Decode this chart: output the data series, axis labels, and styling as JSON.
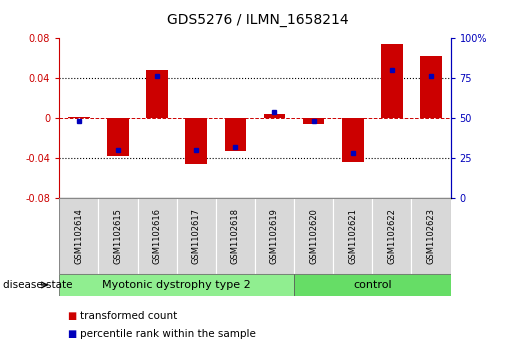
{
  "title": "GDS5276 / ILMN_1658214",
  "samples": [
    "GSM1102614",
    "GSM1102615",
    "GSM1102616",
    "GSM1102617",
    "GSM1102618",
    "GSM1102619",
    "GSM1102620",
    "GSM1102621",
    "GSM1102622",
    "GSM1102623"
  ],
  "red_values": [
    0.001,
    -0.038,
    0.048,
    -0.046,
    -0.033,
    0.004,
    -0.006,
    -0.044,
    0.074,
    0.062
  ],
  "blue_values": [
    48,
    30,
    76,
    30,
    32,
    54,
    48,
    28,
    80,
    76
  ],
  "ylim_left": [
    -0.08,
    0.08
  ],
  "ylim_right": [
    0,
    100
  ],
  "yticks_left": [
    -0.08,
    -0.04,
    0,
    0.04,
    0.08
  ],
  "yticks_right": [
    0,
    25,
    50,
    75,
    100
  ],
  "group_separator": 6,
  "bar_width": 0.55,
  "red_color": "#CC0000",
  "blue_color": "#0000BB",
  "axis_left_color": "#CC0000",
  "axis_right_color": "#0000BB",
  "background_color": "#ffffff",
  "label_bg_color": "#d8d8d8",
  "group1_color": "#90EE90",
  "group2_color": "#66DD66",
  "group1_label": "Myotonic dystrophy type 2",
  "group2_label": "control",
  "disease_state_label": "disease state",
  "legend_label1": "transformed count",
  "legend_label2": "percentile rank within the sample",
  "title_fontsize": 10,
  "tick_fontsize": 7,
  "sample_fontsize": 6,
  "group_fontsize": 8,
  "legend_fontsize": 7.5
}
